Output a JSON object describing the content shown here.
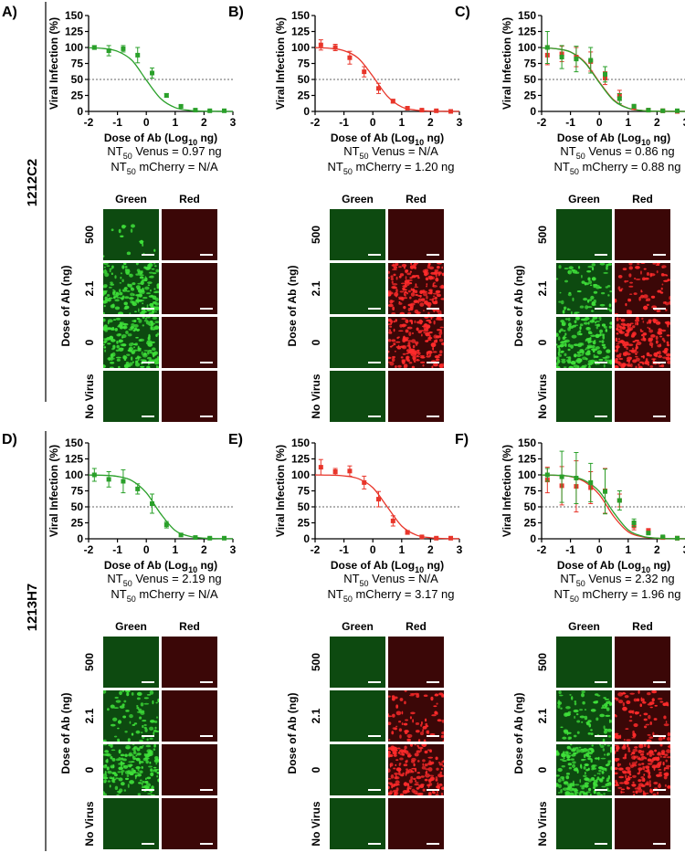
{
  "rows": [
    "1212C2",
    "1213H7"
  ],
  "image_grid": {
    "columns": [
      "Green",
      "Red"
    ],
    "rows": [
      "500",
      "2.1",
      "0",
      "No Virus"
    ],
    "axis_label": "Dose of Ab (ng)"
  },
  "chart_data": [
    {
      "type": "line",
      "panel": "A)",
      "ylabel": "Viral Infection (%)",
      "xlabel": {
        "text": "Dose of Ab (Log",
        "sub": "10",
        "unit": " ng)"
      },
      "xlim": [
        -2,
        3
      ],
      "xticks": [
        -2,
        -1,
        0,
        1,
        2,
        3
      ],
      "ylim": [
        0,
        150
      ],
      "yticks": [
        0,
        25,
        50,
        75,
        100,
        125,
        150
      ],
      "threshold": 50,
      "x": [
        -1.8,
        -1.3,
        -0.8,
        -0.3,
        0.2,
        0.7,
        1.2,
        1.7,
        2.2,
        2.7
      ],
      "series": [
        {
          "color": "#2aa02a",
          "values": [
            100,
            95,
            98,
            88,
            60,
            25,
            8,
            2,
            1,
            1
          ],
          "errors": [
            3,
            8,
            5,
            12,
            8,
            3,
            2,
            1,
            1,
            1
          ]
        }
      ],
      "fit_x": [
        -2,
        -1.5,
        -1,
        -0.5,
        0,
        0.5,
        1,
        1.5,
        2,
        2.5,
        3
      ],
      "fits": [
        {
          "color": "#2aa02a",
          "values": [
            99.6,
            98.5,
            94,
            80,
            49,
            20,
            6,
            1.6,
            0.4,
            0.1,
            0
          ]
        }
      ],
      "nt50": [
        {
          "label": "NT",
          "sub": "50",
          "text": " Venus = 0.97 ng"
        },
        {
          "label": "NT",
          "sub": "50",
          "text": " mCherry = N/A"
        }
      ]
    },
    {
      "type": "line",
      "panel": "B)",
      "ylabel": "Viral Infection (%)",
      "xlabel": {
        "text": "Dose of Ab (Log",
        "sub": "10",
        "unit": " ng)"
      },
      "xlim": [
        -2,
        3
      ],
      "xticks": [
        -2,
        -1,
        0,
        1,
        2,
        3
      ],
      "ylim": [
        0,
        150
      ],
      "yticks": [
        0,
        25,
        50,
        75,
        100,
        125,
        150
      ],
      "threshold": 50,
      "x": [
        -1.8,
        -1.3,
        -0.8,
        -0.3,
        0.2,
        0.7,
        1.2,
        1.7,
        2.2,
        2.7
      ],
      "series": [
        {
          "color": "#e8352a",
          "values": [
            104,
            100,
            84,
            62,
            36,
            16,
            5,
            2,
            1,
            0
          ],
          "errors": [
            8,
            5,
            10,
            8,
            8,
            3,
            2,
            1,
            1,
            1
          ]
        }
      ],
      "fit_x": [
        -2,
        -1.5,
        -1,
        -0.5,
        0,
        0.5,
        1,
        1.5,
        2,
        2.5,
        3
      ],
      "fits": [
        {
          "color": "#e8352a",
          "values": [
            99.7,
            98.8,
            95,
            83,
            55,
            24,
            7,
            2,
            0.5,
            0.1,
            0
          ]
        }
      ],
      "nt50": [
        {
          "label": "NT",
          "sub": "50",
          "text": " Venus = N/A"
        },
        {
          "label": "NT",
          "sub": "50",
          "text": " mCherry = 1.20 ng"
        }
      ]
    },
    {
      "type": "line",
      "panel": "C)",
      "ylabel": "Viral Infection (%)",
      "xlabel": {
        "text": "Dose of Ab (Log",
        "sub": "10",
        "unit": " ng)"
      },
      "xlim": [
        -2,
        3
      ],
      "xticks": [
        -2,
        -1,
        0,
        1,
        2,
        3
      ],
      "ylim": [
        0,
        150
      ],
      "yticks": [
        0,
        25,
        50,
        75,
        100,
        125,
        150
      ],
      "threshold": 50,
      "x": [
        -1.8,
        -1.3,
        -0.8,
        -0.3,
        0.2,
        0.7,
        1.2,
        1.7,
        2.2,
        2.7
      ],
      "series": [
        {
          "color": "#e8352a",
          "values": [
            88,
            90,
            85,
            78,
            52,
            25,
            6,
            2,
            1,
            0
          ],
          "errors": [
            15,
            12,
            15,
            15,
            10,
            8,
            3,
            1,
            1,
            1
          ]
        },
        {
          "color": "#2aa02a",
          "values": [
            100,
            85,
            82,
            80,
            58,
            20,
            8,
            2,
            1,
            1
          ],
          "errors": [
            25,
            18,
            20,
            20,
            12,
            8,
            3,
            1,
            1,
            1
          ]
        }
      ],
      "fit_x": [
        -2,
        -1.5,
        -1,
        -0.5,
        0,
        0.5,
        1,
        1.5,
        2,
        2.5,
        3
      ],
      "fits": [
        {
          "color": "#e8352a",
          "values": [
            99.5,
            98,
            93,
            77,
            46,
            18,
            5,
            1.4,
            0.3,
            0.1,
            0
          ]
        },
        {
          "color": "#2aa02a",
          "values": [
            99.5,
            98,
            93,
            76,
            45,
            17,
            5,
            1.3,
            0.3,
            0.1,
            0
          ]
        }
      ],
      "nt50": [
        {
          "label": "NT",
          "sub": "50",
          "text": " Venus = 0.86 ng"
        },
        {
          "label": "NT",
          "sub": "50",
          "text": " mCherry = 0.88 ng"
        }
      ]
    },
    {
      "type": "line",
      "panel": "D)",
      "ylabel": "Viral Infection (%)",
      "xlabel": {
        "text": "Dose of Ab (Log",
        "sub": "10",
        "unit": " ng)"
      },
      "xlim": [
        -2,
        3
      ],
      "xticks": [
        -2,
        -1,
        0,
        1,
        2,
        3
      ],
      "ylim": [
        0,
        150
      ],
      "yticks": [
        0,
        25,
        50,
        75,
        100,
        125,
        150
      ],
      "threshold": 50,
      "x": [
        -1.8,
        -1.3,
        -0.8,
        -0.3,
        0.2,
        0.7,
        1.2,
        1.7,
        2.2,
        2.7
      ],
      "series": [
        {
          "color": "#2aa02a",
          "values": [
            100,
            93,
            90,
            78,
            55,
            22,
            6,
            2,
            1,
            1
          ],
          "errors": [
            10,
            12,
            18,
            8,
            15,
            5,
            2,
            1,
            1,
            1
          ]
        }
      ],
      "fit_x": [
        -2,
        -1.5,
        -1,
        -0.5,
        0,
        0.5,
        1,
        1.5,
        2,
        2.5,
        3
      ],
      "fits": [
        {
          "color": "#2aa02a",
          "values": [
            99.8,
            99.4,
            97.6,
            91,
            72,
            39,
            13,
            4,
            1,
            0.3,
            0.1
          ]
        }
      ],
      "nt50": [
        {
          "label": "NT",
          "sub": "50",
          "text": " Venus = 2.19 ng"
        },
        {
          "label": "NT",
          "sub": "50",
          "text": " mCherry = N/A"
        }
      ]
    },
    {
      "type": "line",
      "panel": "E)",
      "ylabel": "Viral Infection (%)",
      "xlabel": {
        "text": "Dose of Ab (Log",
        "sub": "10",
        "unit": " ng)"
      },
      "xlim": [
        -2,
        3
      ],
      "xticks": [
        -2,
        -1,
        0,
        1,
        2,
        3
      ],
      "ylim": [
        0,
        150
      ],
      "yticks": [
        0,
        25,
        50,
        75,
        100,
        125,
        150
      ],
      "threshold": 50,
      "x": [
        -1.8,
        -1.3,
        -0.8,
        -0.3,
        0.2,
        0.7,
        1.2,
        1.7,
        2.2,
        2.7
      ],
      "series": [
        {
          "color": "#e8352a",
          "values": [
            112,
            105,
            106,
            88,
            62,
            28,
            10,
            3,
            1,
            1
          ],
          "errors": [
            12,
            5,
            8,
            10,
            12,
            8,
            3,
            1,
            1,
            1
          ]
        }
      ],
      "fit_x": [
        -2,
        -1.5,
        -1,
        -0.5,
        0,
        0.5,
        1,
        1.5,
        2,
        2.5,
        3
      ],
      "fits": [
        {
          "color": "#e8352a",
          "values": [
            99.9,
            99.6,
            98.4,
            94,
            80,
            50,
            20,
            6,
            1.6,
            0.4,
            0.1
          ]
        }
      ],
      "nt50": [
        {
          "label": "NT",
          "sub": "50",
          "text": " Venus = N/A"
        },
        {
          "label": "NT",
          "sub": "50",
          "text": " mCherry = 3.17 ng"
        }
      ]
    },
    {
      "type": "line",
      "panel": "F)",
      "ylabel": "Viral Infection (%)",
      "xlabel": {
        "text": "Dose of Ab (Log",
        "sub": "10",
        "unit": " ng)"
      },
      "xlim": [
        -2,
        3
      ],
      "xticks": [
        -2,
        -1,
        0,
        1,
        2,
        3
      ],
      "ylim": [
        0,
        150
      ],
      "yticks": [
        0,
        25,
        50,
        75,
        100,
        125,
        150
      ],
      "threshold": 50,
      "x": [
        -1.8,
        -1.3,
        -0.8,
        -0.3,
        0.2,
        0.7,
        1.2,
        1.7,
        2.2,
        2.7
      ],
      "series": [
        {
          "color": "#e8352a",
          "values": [
            92,
            83,
            82,
            80,
            75,
            60,
            20,
            12,
            2,
            1
          ],
          "errors": [
            20,
            30,
            40,
            25,
            35,
            10,
            6,
            4,
            1,
            1
          ]
        },
        {
          "color": "#2aa02a",
          "values": [
            100,
            97,
            95,
            88,
            74,
            60,
            25,
            9,
            3,
            1
          ],
          "errors": [
            10,
            40,
            40,
            30,
            35,
            15,
            6,
            2,
            1,
            1
          ]
        }
      ],
      "fit_x": [
        -2,
        -1.5,
        -1,
        -0.5,
        0,
        0.5,
        1,
        1.5,
        2,
        2.5,
        3
      ],
      "fits": [
        {
          "color": "#e8352a",
          "values": [
            99.8,
            99.3,
            97.3,
            89,
            69,
            35,
            11,
            3,
            0.8,
            0.2,
            0.1
          ]
        },
        {
          "color": "#2aa02a",
          "values": [
            99.8,
            99.5,
            97.8,
            91,
            74,
            41,
            14,
            4,
            1,
            0.3,
            0.1
          ]
        }
      ],
      "nt50": [
        {
          "label": "NT",
          "sub": "50",
          "text": " Venus = 2.32 ng"
        },
        {
          "label": "NT",
          "sub": "50",
          "text": " mCherry = 1.96 ng"
        }
      ]
    }
  ]
}
